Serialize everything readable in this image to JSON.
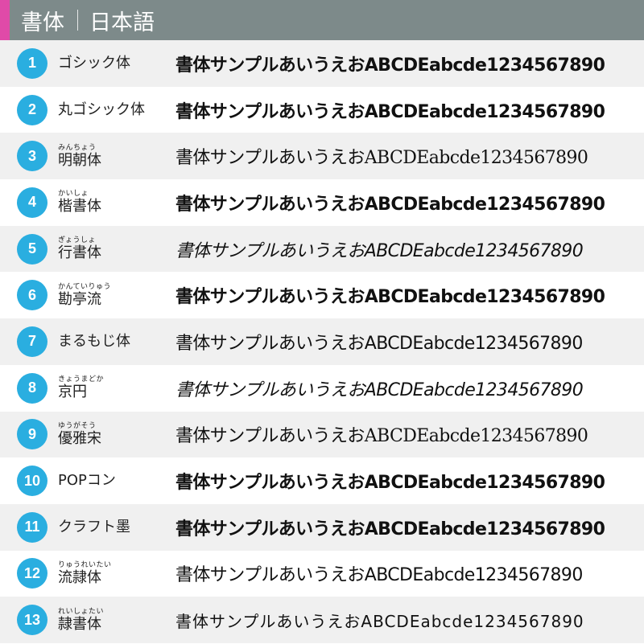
{
  "header": {
    "title": "書体",
    "subtitle": "日本語",
    "accent_color": "#e04aa8",
    "background": "#7d8a8a"
  },
  "badge_color": "#2aaee0",
  "sample_text": "書体サンプルあいうえおABCDEabcde1234567890",
  "fonts": [
    {
      "num": "1",
      "name": "ゴシック体",
      "ruby": ""
    },
    {
      "num": "2",
      "name": "丸ゴシック体",
      "ruby": ""
    },
    {
      "num": "3",
      "name": "明朝体",
      "ruby": "みんちょう"
    },
    {
      "num": "4",
      "name": "楷書体",
      "ruby": "かいしょ"
    },
    {
      "num": "5",
      "name": "行書体",
      "ruby": "ぎょうしょ"
    },
    {
      "num": "6",
      "name": "勘亭流",
      "ruby": "かんていりゅう"
    },
    {
      "num": "7",
      "name": "まるもじ体",
      "ruby": ""
    },
    {
      "num": "8",
      "name": "京円",
      "ruby": "きょうまどか"
    },
    {
      "num": "9",
      "name": "優雅宋",
      "ruby": "ゆうがそう"
    },
    {
      "num": "10",
      "name": "POPコン",
      "ruby": ""
    },
    {
      "num": "11",
      "name": "クラフト墨",
      "ruby": ""
    },
    {
      "num": "12",
      "name": "流隷体",
      "ruby": "りゅうれいたい"
    },
    {
      "num": "13",
      "name": "隷書体",
      "ruby": "れいしょたい"
    }
  ]
}
